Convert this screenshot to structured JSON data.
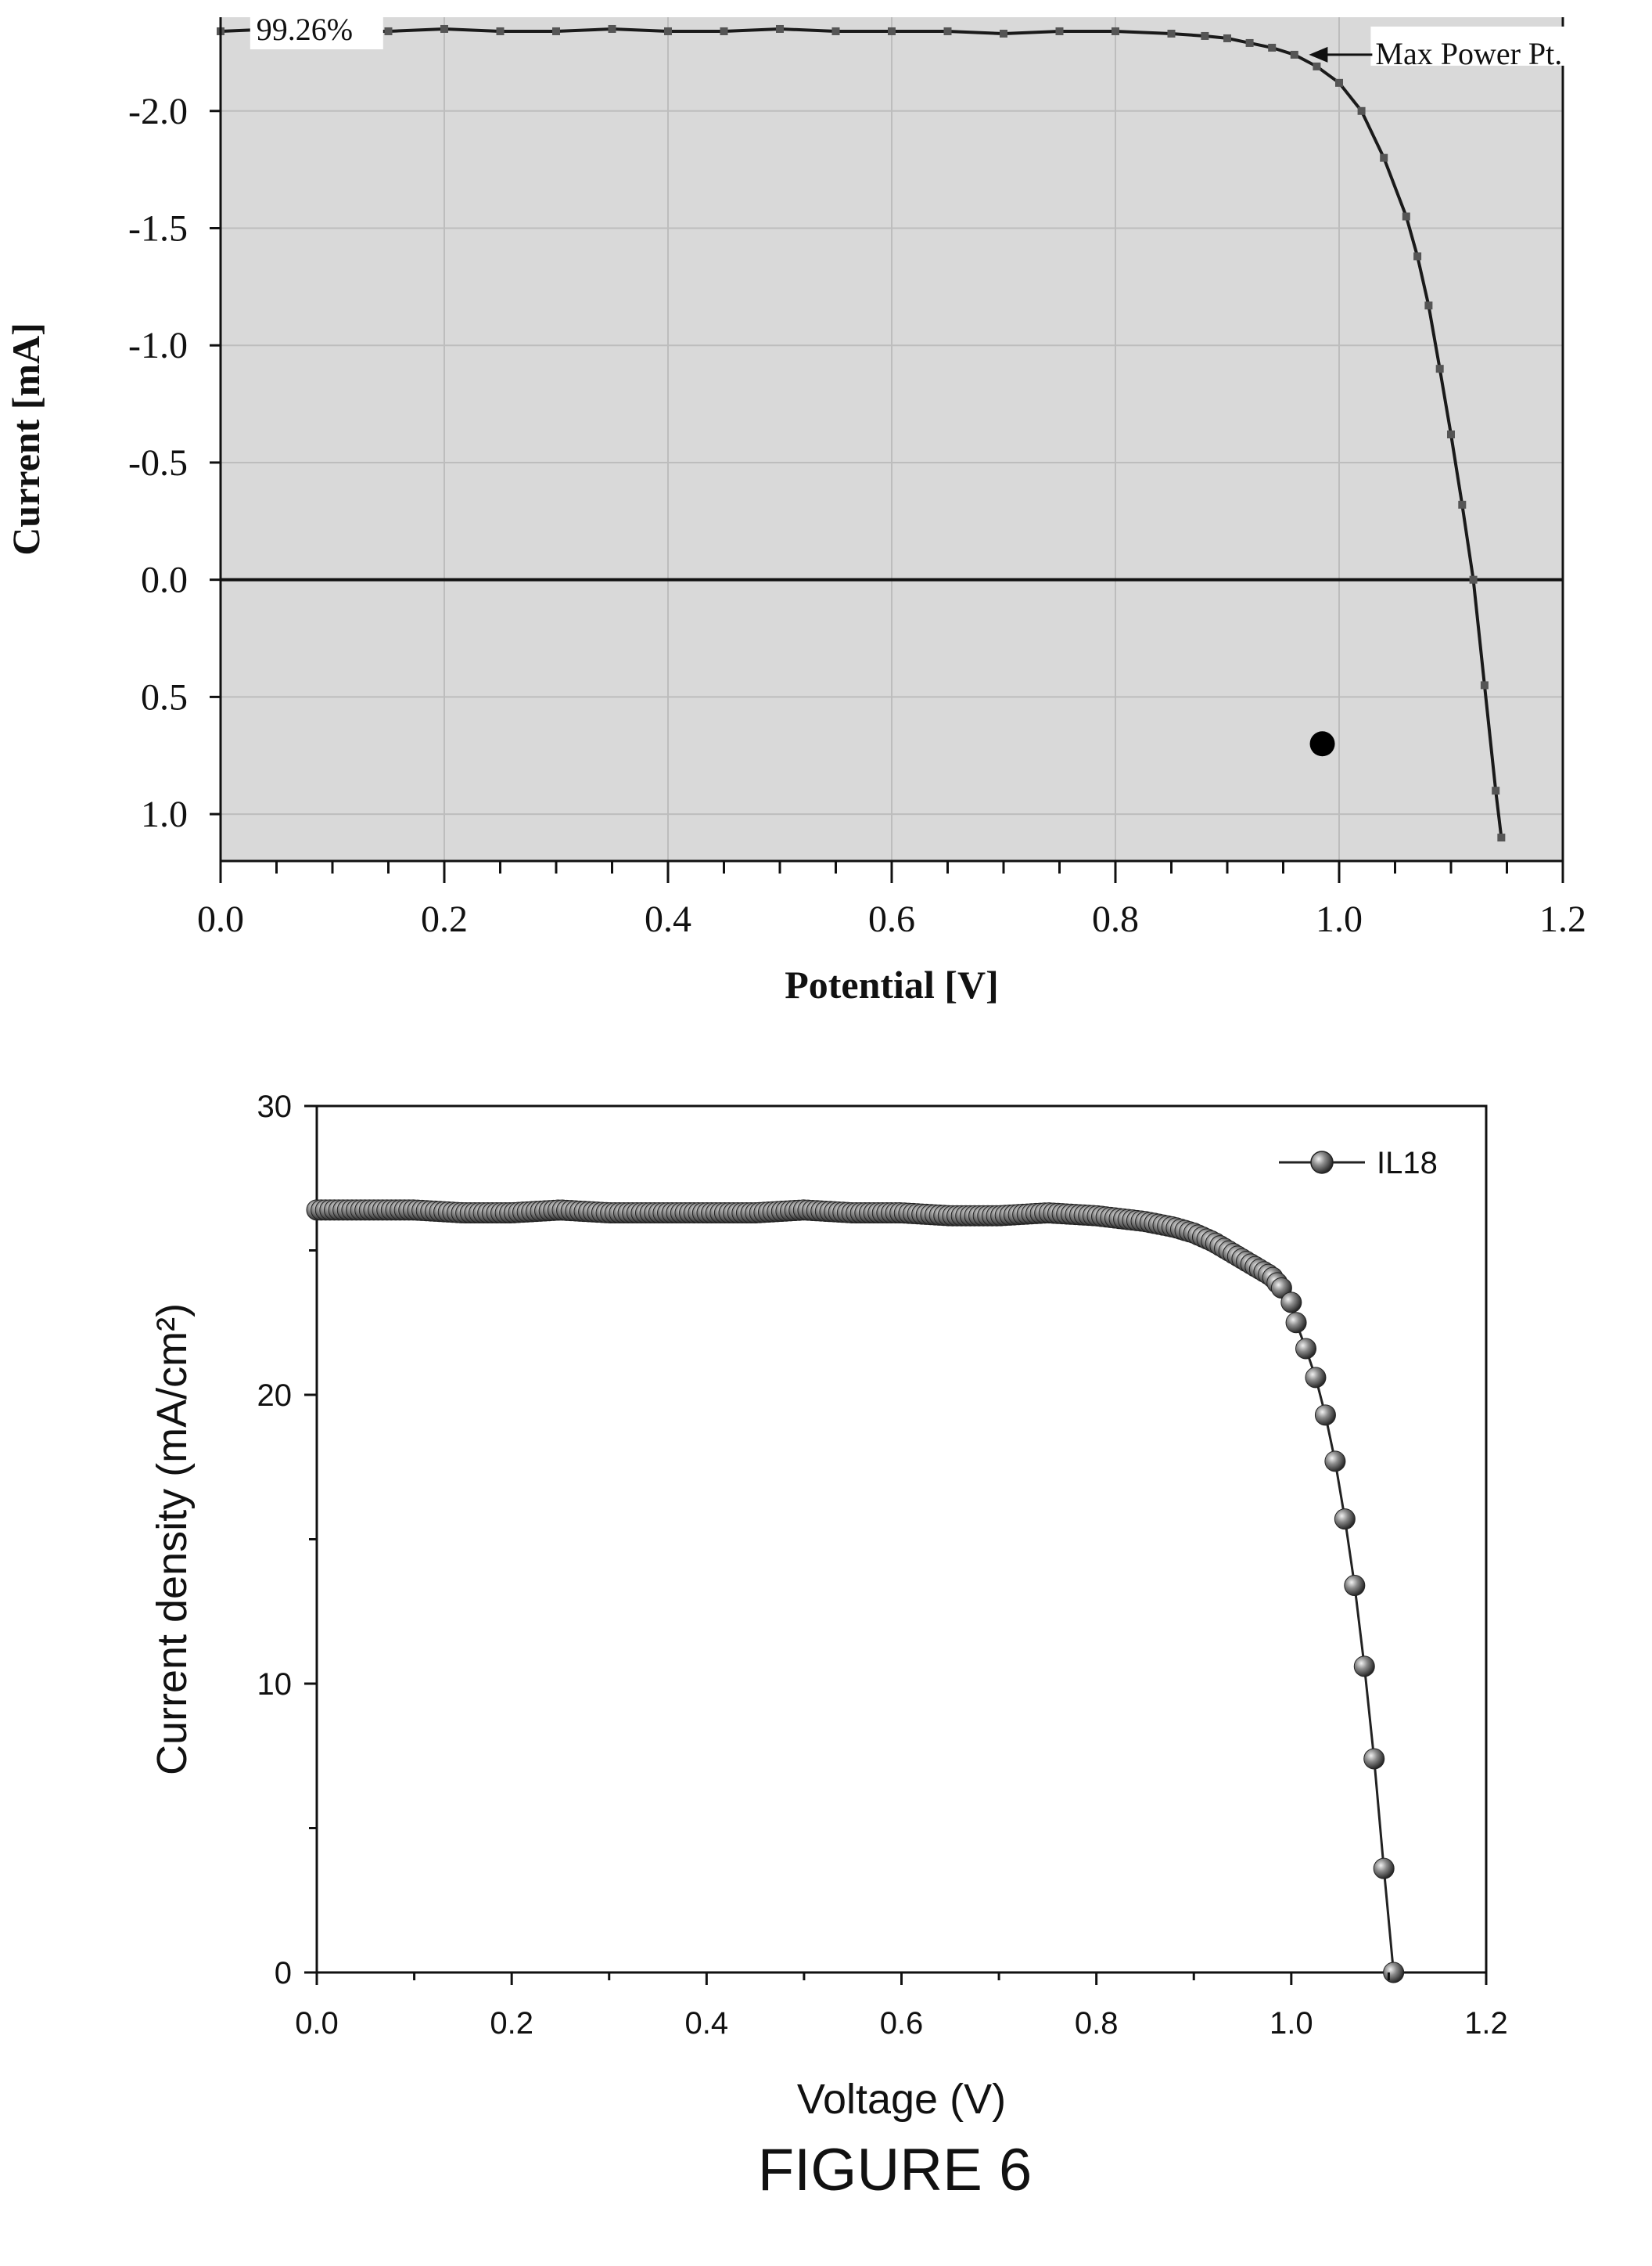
{
  "figure_caption": "FIGURE 6",
  "chart_data": [
    {
      "type": "line",
      "xlabel": "Potential [V]",
      "ylabel": "Current [mA]",
      "xlim": [
        0.0,
        1.2
      ],
      "ylim": [
        1.2,
        -2.4
      ],
      "y_axis_inverted": true,
      "grid": true,
      "plot_background": "#d9d9d9",
      "x_ticks": [
        "0.0",
        "0.2",
        "0.4",
        "0.6",
        "0.8",
        "1.0",
        "1.2"
      ],
      "y_ticks": [
        {
          "value": -2.0,
          "label": "-2.0"
        },
        {
          "value": -1.5,
          "label": "-1.5"
        },
        {
          "value": -1.0,
          "label": "-1.0"
        },
        {
          "value": -0.5,
          "label": "-0.5"
        },
        {
          "value": 0.0,
          "label": "0.0"
        },
        {
          "value": 0.5,
          "label": "0.5"
        },
        {
          "value": 1.0,
          "label": "1.0"
        }
      ],
      "annotations": [
        {
          "text": "99.26%",
          "x": 0.06,
          "y": -2.35
        },
        {
          "text": "Max Power Pt.",
          "x": 0.98,
          "y": -2.24,
          "arrow": true
        }
      ],
      "marker_point": {
        "x": 0.985,
        "y": 0.7
      },
      "series": [
        {
          "style": "solid-line-with-square-markers",
          "x": [
            0.0,
            0.05,
            0.1,
            0.15,
            0.2,
            0.25,
            0.3,
            0.35,
            0.4,
            0.45,
            0.5,
            0.55,
            0.6,
            0.65,
            0.7,
            0.75,
            0.8,
            0.85,
            0.88,
            0.9,
            0.92,
            0.94,
            0.96,
            0.98,
            1.0,
            1.02,
            1.04,
            1.06,
            1.07,
            1.08,
            1.09,
            1.1,
            1.11,
            1.12,
            1.13,
            1.14,
            1.145
          ],
          "y": [
            -2.34,
            -2.35,
            -2.34,
            -2.34,
            -2.35,
            -2.34,
            -2.34,
            -2.35,
            -2.34,
            -2.34,
            -2.35,
            -2.34,
            -2.34,
            -2.34,
            -2.33,
            -2.34,
            -2.34,
            -2.33,
            -2.32,
            -2.31,
            -2.29,
            -2.27,
            -2.24,
            -2.19,
            -2.12,
            -2.0,
            -1.8,
            -1.55,
            -1.38,
            -1.17,
            -0.9,
            -0.62,
            -0.32,
            0.0,
            0.45,
            0.9,
            1.1
          ]
        }
      ]
    },
    {
      "type": "line",
      "xlabel": "Voltage (V)",
      "ylabel": "Current density (mA/cm²)",
      "xlim": [
        0.0,
        1.2
      ],
      "ylim": [
        0,
        30
      ],
      "grid": false,
      "legend_position": "top-right",
      "x_ticks": [
        "0.0",
        "0.2",
        "0.4",
        "0.6",
        "0.8",
        "1.0",
        "1.2"
      ],
      "y_ticks": [
        "0",
        "10",
        "20",
        "30"
      ],
      "series": [
        {
          "name": "IL18",
          "style": "line-with-sphere-markers",
          "x": [
            0.0,
            0.05,
            0.1,
            0.15,
            0.2,
            0.25,
            0.3,
            0.35,
            0.4,
            0.45,
            0.5,
            0.55,
            0.6,
            0.65,
            0.7,
            0.75,
            0.8,
            0.85,
            0.88,
            0.9,
            0.92,
            0.94,
            0.96,
            0.98,
            0.99,
            1.0,
            1.005,
            1.015,
            1.025,
            1.035,
            1.045,
            1.055,
            1.065,
            1.075,
            1.085,
            1.095,
            1.105,
            1.113
          ],
          "y": [
            26.4,
            26.4,
            26.4,
            26.3,
            26.3,
            26.4,
            26.3,
            26.3,
            26.3,
            26.3,
            26.4,
            26.3,
            26.3,
            26.2,
            26.2,
            26.3,
            26.2,
            26.0,
            25.8,
            25.6,
            25.3,
            24.9,
            24.5,
            24.1,
            23.7,
            23.2,
            22.5,
            21.6,
            20.6,
            19.3,
            17.7,
            15.7,
            13.4,
            10.6,
            7.4,
            3.6,
            0.0,
            0.0
          ]
        }
      ]
    }
  ]
}
